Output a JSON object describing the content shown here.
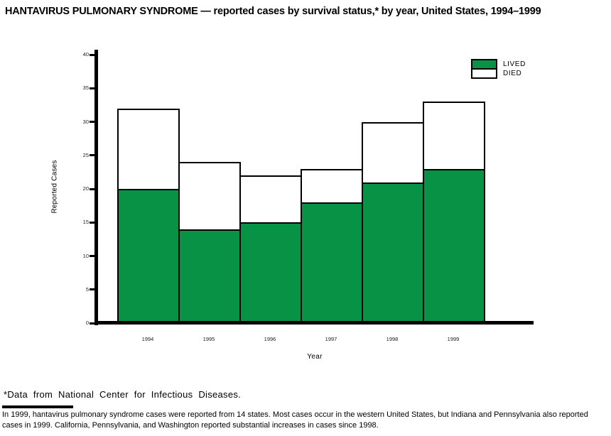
{
  "page": {
    "title": "HANTAVIRUS PULMONARY SYNDROME — reported cases by survival status,* by year, United States, 1994–1999"
  },
  "chart_data": {
    "type": "bar",
    "stacked": true,
    "title": "HANTAVIRUS PULMONARY SYNDROME — reported cases by survival status,* by year, United States, 1994–1999",
    "categories": [
      "1994",
      "1995",
      "1996",
      "1997",
      "1998",
      "1999"
    ],
    "series": [
      {
        "name": "LIVED",
        "color": "#079245",
        "values": [
          20,
          14,
          15,
          18,
          21,
          23
        ]
      },
      {
        "name": "DIED",
        "color": "#ffffff",
        "values": [
          12,
          10,
          7,
          5,
          9,
          10
        ]
      }
    ],
    "stack_totals": [
      32,
      24,
      22,
      23,
      30,
      33
    ],
    "xlabel": "Year",
    "ylabel": "Reported Cases",
    "ylim": [
      0,
      40
    ],
    "yticks": [
      0,
      5,
      10,
      15,
      20,
      25,
      30,
      35,
      40
    ],
    "grid": false,
    "legend_position": "top-right"
  },
  "colors": {
    "axis": "#000000",
    "lived": "#079245",
    "died": "#ffffff"
  },
  "footnote": "*Data from National Center for Infectious Diseases.",
  "note": "In 1999, hantavirus pulmonary syndrome cases were reported from 14 states. Most cases occur in the western United States, but Indiana and Pennsylvania also reported cases in 1999. California, Pennsylvania, and Washington reported substantial increases in cases since 1998."
}
